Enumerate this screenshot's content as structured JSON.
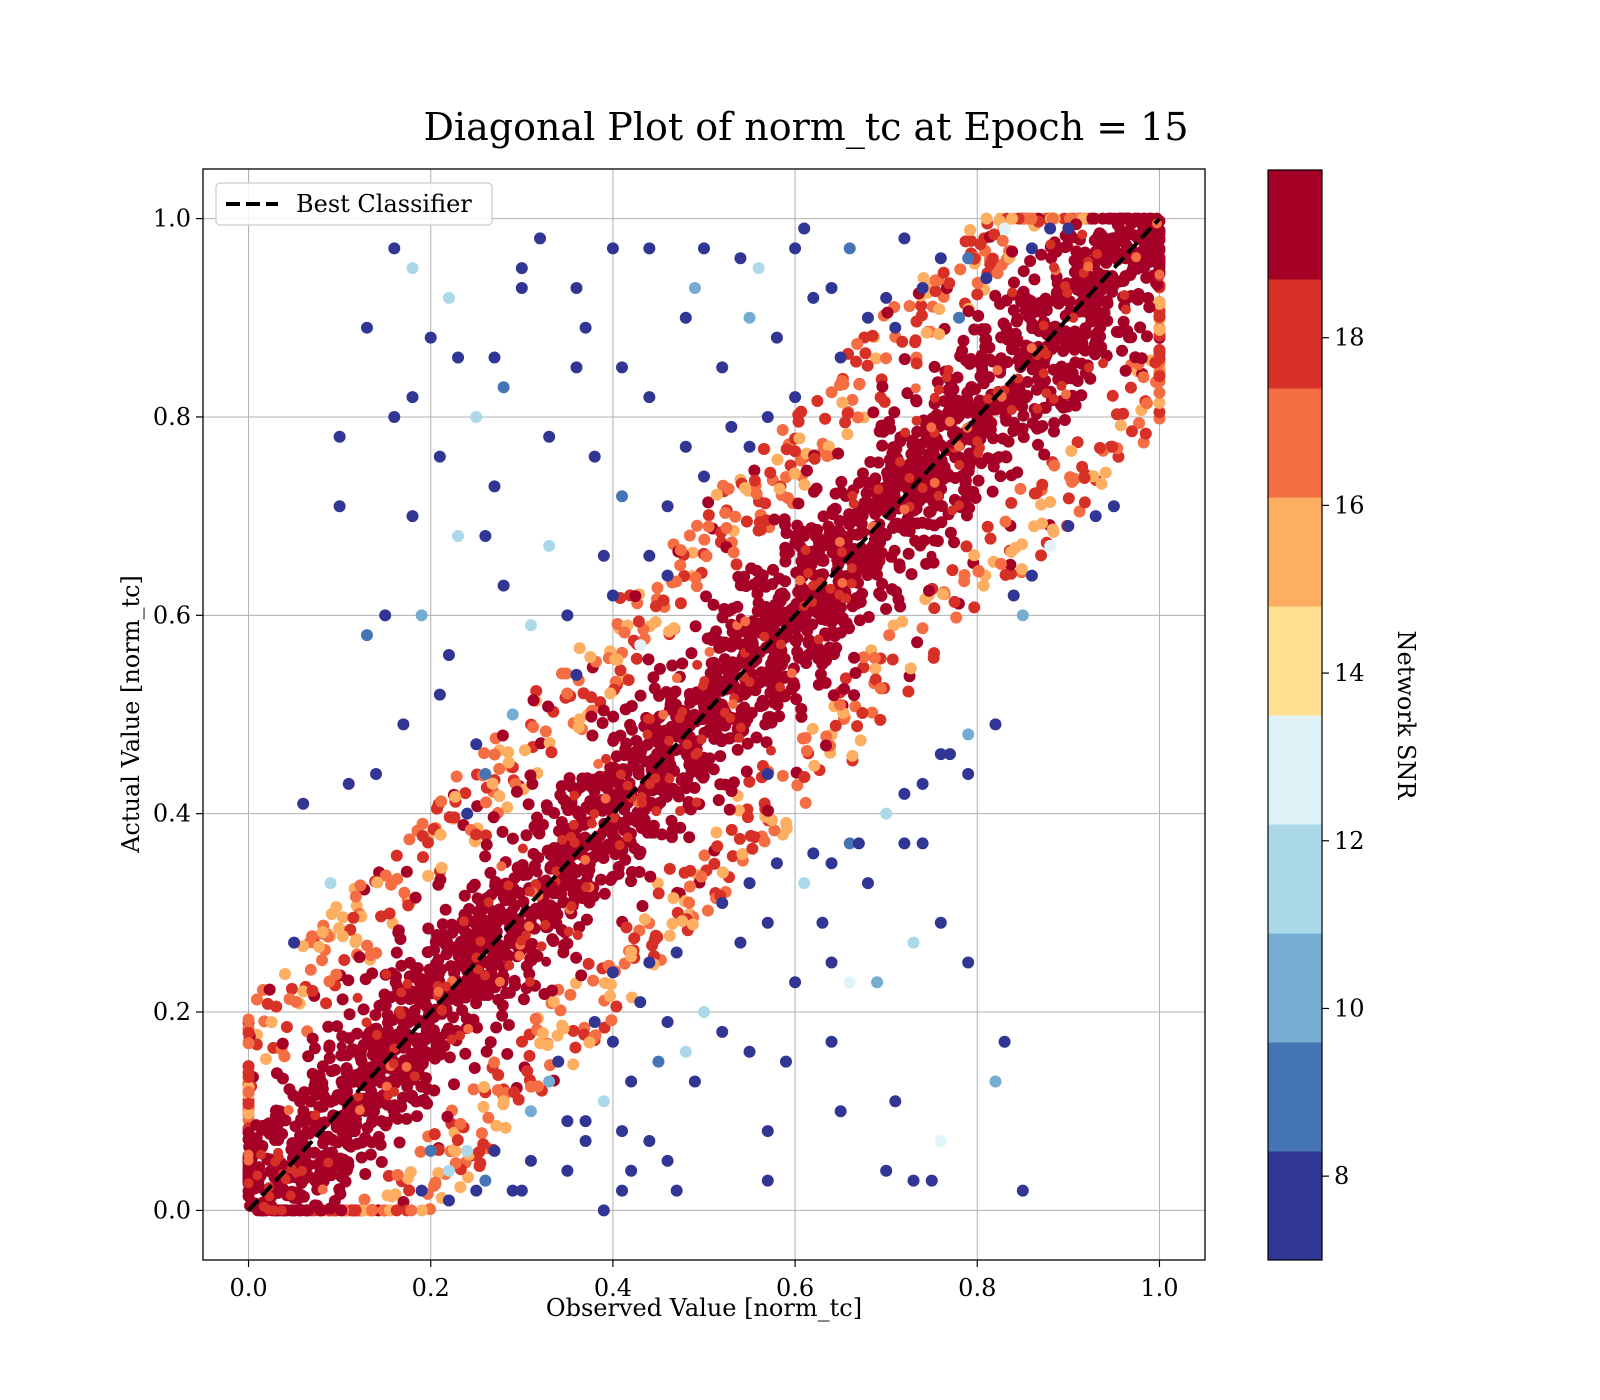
{
  "chart_data": {
    "type": "scatter",
    "title": "Diagonal Plot of norm_tc at Epoch = 15",
    "xlabel": "Observed Value [norm_tc]",
    "ylabel": "Actual Value [norm_tc]",
    "xlim": [
      -0.05,
      1.05
    ],
    "ylim": [
      -0.05,
      1.05
    ],
    "xticks": [
      "0.0",
      "0.2",
      "0.4",
      "0.6",
      "0.8",
      "1.0"
    ],
    "yticks": [
      "0.0",
      "0.2",
      "0.4",
      "0.6",
      "0.8",
      "1.0"
    ],
    "grid": true,
    "legend": {
      "placement": "top-left",
      "entries": [
        {
          "label": "Best Classifier",
          "style": "dashed",
          "color": "#000000"
        }
      ]
    },
    "reference_line": {
      "label": "Best Classifier",
      "x": [
        0,
        1
      ],
      "y": [
        0,
        1
      ],
      "style": "dashed"
    },
    "colorbar": {
      "label": "Network SNR",
      "range": [
        7,
        20
      ],
      "ticks": [
        "8",
        "10",
        "12",
        "14",
        "16",
        "18"
      ],
      "tick_values": [
        8,
        10,
        12,
        14,
        16,
        18
      ],
      "colors": [
        "#313695",
        "#4575b4",
        "#74add1",
        "#abd9e9",
        "#e0f3f8",
        "#fee090",
        "#fdae61",
        "#f46d43",
        "#d73027",
        "#a50026"
      ]
    },
    "series": [
      {
        "description": "high-SNR points (SNR ≥ 19) densely clustered along the diagonal, residual spread about ±0.12",
        "snr": 19.5,
        "band": {
          "x": [
            0,
            1
          ],
          "y": [
            0,
            1
          ],
          "halfwidth": 0.12
        }
      },
      {
        "description": "intermediate-SNR points (≈15–19) along the outer edges of the diagonal band",
        "snr_range": [
          15,
          19
        ],
        "band": {
          "x": [
            0,
            1
          ],
          "y": [
            0,
            1
          ],
          "halfwidth": 0.15
        }
      },
      {
        "description": "low-SNR outliers (≈7–13) scattered away from the diagonal",
        "points": [
          [
            0.16,
            0.97
          ],
          [
            0.18,
            0.95
          ],
          [
            0.13,
            0.89
          ],
          [
            0.22,
            0.92
          ],
          [
            0.1,
            0.78
          ],
          [
            0.18,
            0.82
          ],
          [
            0.1,
            0.71
          ],
          [
            0.18,
            0.7
          ],
          [
            0.16,
            0.8
          ],
          [
            0.21,
            0.76
          ],
          [
            0.27,
            0.73
          ],
          [
            0.23,
            0.68
          ],
          [
            0.26,
            0.68
          ],
          [
            0.15,
            0.6
          ],
          [
            0.19,
            0.6
          ],
          [
            0.13,
            0.58
          ],
          [
            0.06,
            0.41
          ],
          [
            0.09,
            0.33
          ],
          [
            0.05,
            0.27
          ],
          [
            0.11,
            0.43
          ],
          [
            0.14,
            0.44
          ],
          [
            0.17,
            0.49
          ],
          [
            0.21,
            0.52
          ],
          [
            0.25,
            0.47
          ],
          [
            0.28,
            0.63
          ],
          [
            0.3,
            0.95
          ],
          [
            0.3,
            0.93
          ],
          [
            0.32,
            0.98
          ],
          [
            0.36,
            0.93
          ],
          [
            0.37,
            0.89
          ],
          [
            0.4,
            0.97
          ],
          [
            0.44,
            0.97
          ],
          [
            0.49,
            0.93
          ],
          [
            0.5,
            0.97
          ],
          [
            0.54,
            0.96
          ],
          [
            0.56,
            0.95
          ],
          [
            0.6,
            0.97
          ],
          [
            0.62,
            0.92
          ],
          [
            0.65,
            0.86
          ],
          [
            0.61,
            0.99
          ],
          [
            0.66,
            0.97
          ],
          [
            0.72,
            0.98
          ],
          [
            0.76,
            0.96
          ],
          [
            0.79,
            0.96
          ],
          [
            0.83,
            0.99
          ],
          [
            0.33,
            0.78
          ],
          [
            0.38,
            0.76
          ],
          [
            0.41,
            0.72
          ],
          [
            0.46,
            0.71
          ],
          [
            0.44,
            0.82
          ],
          [
            0.52,
            0.85
          ],
          [
            0.55,
            0.77
          ],
          [
            0.57,
            0.8
          ],
          [
            0.6,
            0.82
          ],
          [
            0.35,
            0.6
          ],
          [
            0.4,
            0.62
          ],
          [
            0.43,
            0.57
          ],
          [
            0.36,
            0.54
          ],
          [
            0.31,
            0.59
          ],
          [
            0.29,
            0.5
          ],
          [
            0.26,
            0.44
          ],
          [
            0.24,
            0.4
          ],
          [
            0.22,
            0.56
          ],
          [
            0.33,
            0.67
          ],
          [
            0.28,
            0.83
          ],
          [
            0.25,
            0.8
          ],
          [
            0.36,
            0.85
          ],
          [
            0.41,
            0.85
          ],
          [
            0.48,
            0.9
          ],
          [
            0.53,
            0.79
          ],
          [
            0.39,
            0.66
          ],
          [
            0.46,
            0.64
          ],
          [
            0.44,
            0.66
          ],
          [
            0.5,
            0.74
          ],
          [
            0.48,
            0.77
          ],
          [
            0.55,
            0.9
          ],
          [
            0.58,
            0.88
          ],
          [
            0.64,
            0.93
          ],
          [
            0.68,
            0.9
          ],
          [
            0.71,
            0.89
          ],
          [
            0.74,
            0.93
          ],
          [
            0.78,
            0.9
          ],
          [
            0.81,
            0.94
          ],
          [
            0.86,
            0.97
          ],
          [
            0.88,
            0.99
          ],
          [
            0.9,
            0.99
          ],
          [
            0.7,
            0.92
          ],
          [
            0.23,
            0.86
          ],
          [
            0.2,
            0.88
          ],
          [
            0.27,
            0.86
          ],
          [
            0.57,
            0.44
          ],
          [
            0.62,
            0.36
          ],
          [
            0.66,
            0.37
          ],
          [
            0.68,
            0.33
          ],
          [
            0.74,
            0.37
          ],
          [
            0.77,
            0.46
          ],
          [
            0.79,
            0.44
          ],
          [
            0.79,
            0.48
          ],
          [
            0.82,
            0.49
          ],
          [
            0.72,
            0.37
          ],
          [
            0.63,
            0.29
          ],
          [
            0.64,
            0.25
          ],
          [
            0.66,
            0.23
          ],
          [
            0.69,
            0.23
          ],
          [
            0.73,
            0.27
          ],
          [
            0.76,
            0.29
          ],
          [
            0.79,
            0.25
          ],
          [
            0.6,
            0.23
          ],
          [
            0.57,
            0.29
          ],
          [
            0.54,
            0.27
          ],
          [
            0.5,
            0.2
          ],
          [
            0.48,
            0.16
          ],
          [
            0.49,
            0.13
          ],
          [
            0.52,
            0.18
          ],
          [
            0.55,
            0.16
          ],
          [
            0.59,
            0.15
          ],
          [
            0.64,
            0.17
          ],
          [
            0.65,
            0.1
          ],
          [
            0.7,
            0.04
          ],
          [
            0.71,
            0.11
          ],
          [
            0.73,
            0.03
          ],
          [
            0.75,
            0.03
          ],
          [
            0.76,
            0.07
          ],
          [
            0.82,
            0.13
          ],
          [
            0.83,
            0.17
          ],
          [
            0.85,
            0.02
          ],
          [
            0.57,
            0.08
          ],
          [
            0.57,
            0.03
          ],
          [
            0.47,
            0.02
          ],
          [
            0.46,
            0.05
          ],
          [
            0.44,
            0.07
          ],
          [
            0.41,
            0.08
          ],
          [
            0.42,
            0.04
          ],
          [
            0.39,
            0.0
          ],
          [
            0.41,
            0.02
          ],
          [
            0.35,
            0.04
          ],
          [
            0.37,
            0.07
          ],
          [
            0.31,
            0.05
          ],
          [
            0.3,
            0.02
          ],
          [
            0.26,
            0.03
          ],
          [
            0.25,
            0.02
          ],
          [
            0.22,
            0.04
          ],
          [
            0.22,
            0.01
          ],
          [
            0.19,
            0.02
          ],
          [
            0.2,
            0.06
          ],
          [
            0.31,
            0.1
          ],
          [
            0.33,
            0.13
          ],
          [
            0.34,
            0.15
          ],
          [
            0.35,
            0.09
          ],
          [
            0.37,
            0.09
          ],
          [
            0.39,
            0.11
          ],
          [
            0.42,
            0.13
          ],
          [
            0.45,
            0.15
          ],
          [
            0.46,
            0.19
          ],
          [
            0.4,
            0.24
          ],
          [
            0.44,
            0.25
          ],
          [
            0.47,
            0.26
          ],
          [
            0.52,
            0.31
          ],
          [
            0.55,
            0.33
          ],
          [
            0.58,
            0.35
          ],
          [
            0.61,
            0.33
          ],
          [
            0.64,
            0.35
          ],
          [
            0.67,
            0.37
          ],
          [
            0.7,
            0.4
          ],
          [
            0.72,
            0.42
          ],
          [
            0.74,
            0.43
          ],
          [
            0.76,
            0.46
          ],
          [
            0.84,
            0.62
          ],
          [
            0.85,
            0.6
          ],
          [
            0.86,
            0.64
          ],
          [
            0.88,
            0.67
          ],
          [
            0.9,
            0.69
          ],
          [
            0.93,
            0.7
          ],
          [
            0.95,
            0.71
          ],
          [
            0.38,
            0.19
          ],
          [
            0.4,
            0.17
          ],
          [
            0.43,
            0.21
          ],
          [
            0.29,
            0.02
          ],
          [
            0.27,
            0.06
          ],
          [
            0.24,
            0.06
          ]
        ]
      }
    ]
  }
}
